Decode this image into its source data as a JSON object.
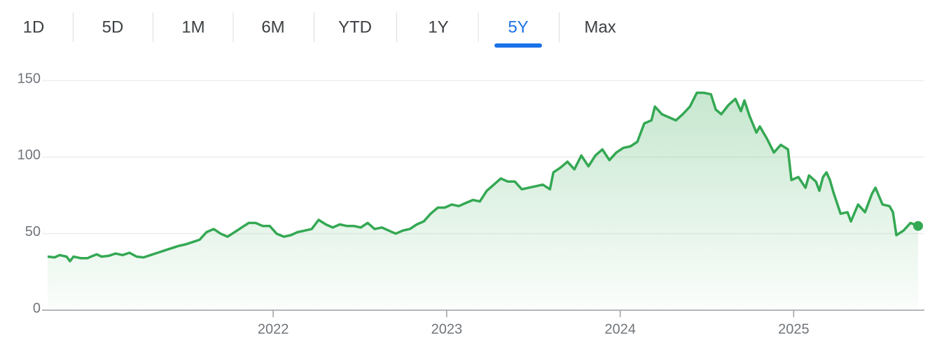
{
  "tabs": {
    "items": [
      "1D",
      "5D",
      "1M",
      "6M",
      "YTD",
      "1Y",
      "5Y",
      "Max"
    ],
    "selected_index": 6
  },
  "chart_data": {
    "type": "line",
    "color": "#34a853",
    "fill": true,
    "grid": true,
    "x": [
      2020.7,
      2020.74,
      2020.769,
      2020.809,
      2020.829,
      2020.849,
      2020.89,
      2020.93,
      2020.95,
      2020.983,
      2021.011,
      2021.051,
      2021.092,
      2021.132,
      2021.172,
      2021.213,
      2021.253,
      2021.293,
      2021.334,
      2021.374,
      2021.415,
      2021.455,
      2021.495,
      2021.536,
      2021.576,
      2021.616,
      2021.657,
      2021.697,
      2021.737,
      2021.778,
      2021.818,
      2021.859,
      2021.899,
      2021.939,
      2021.98,
      2022.02,
      2022.061,
      2022.101,
      2022.141,
      2022.182,
      2022.222,
      2022.262,
      2022.303,
      2022.343,
      2022.384,
      2022.424,
      2022.464,
      2022.505,
      2022.545,
      2022.585,
      2022.626,
      2022.666,
      2022.706,
      2022.747,
      2022.787,
      2022.828,
      2022.868,
      2022.908,
      2022.949,
      2022.989,
      2023.029,
      2023.07,
      2023.11,
      2023.151,
      2023.191,
      2023.231,
      2023.272,
      2023.312,
      2023.352,
      2023.393,
      2023.433,
      2023.474,
      2023.514,
      2023.554,
      2023.595,
      2023.615,
      2023.655,
      2023.696,
      2023.736,
      2023.776,
      2023.817,
      2023.857,
      2023.897,
      2023.938,
      2023.978,
      2024.018,
      2024.059,
      2024.099,
      2024.139,
      2024.18,
      2024.2,
      2024.24,
      2024.281,
      2024.321,
      2024.361,
      2024.402,
      2024.442,
      2024.482,
      2024.523,
      2024.551,
      2024.583,
      2024.624,
      2024.664,
      2024.696,
      2024.716,
      2024.745,
      2024.785,
      2024.805,
      2024.846,
      2024.886,
      2024.926,
      2024.967,
      2024.987,
      2025.027,
      2025.068,
      2025.088,
      2025.128,
      2025.148,
      2025.169,
      2025.189,
      2025.209,
      2025.229,
      2025.27,
      2025.31,
      2025.33,
      2025.371,
      2025.411,
      2025.451,
      2025.471,
      2025.512,
      2025.552,
      2025.572,
      2025.592,
      2025.633,
      2025.673,
      2025.717
    ],
    "values": [
      35,
      34.5,
      36,
      35,
      32,
      35,
      34,
      34,
      35,
      36.5,
      35,
      35.5,
      37,
      36,
      37.5,
      35,
      34.5,
      36,
      37.5,
      39,
      40.5,
      42,
      43,
      44.5,
      46,
      51,
      53,
      50,
      48,
      51,
      54,
      57,
      57,
      55,
      55,
      50,
      48,
      49,
      51,
      52,
      53,
      59,
      56,
      54,
      56,
      55,
      55,
      54,
      57,
      53,
      54,
      52,
      50,
      52,
      53,
      56,
      58,
      63,
      67,
      67,
      69,
      68,
      70,
      72,
      71,
      78,
      82,
      86,
      84,
      84,
      79,
      80,
      81,
      82,
      79,
      90,
      93,
      97,
      92,
      101,
      94,
      101,
      105,
      98,
      103,
      106,
      107,
      110,
      122,
      124,
      133,
      128,
      126,
      124,
      128,
      133,
      142,
      142,
      141,
      131,
      128,
      134,
      138,
      130,
      137,
      127,
      116,
      120,
      112,
      103,
      108,
      105,
      85,
      87,
      80,
      88,
      84,
      78,
      87,
      90,
      85,
      77,
      63,
      64,
      58,
      69,
      64,
      76,
      80,
      69,
      68,
      64,
      49,
      52,
      57,
      55
    ],
    "xlim": [
      2020.7,
      2025.717
    ],
    "xticks": [
      2022,
      2023,
      2024,
      2025
    ],
    "ylim": [
      0,
      150
    ],
    "yticks": [
      0,
      50,
      100,
      150
    ]
  }
}
